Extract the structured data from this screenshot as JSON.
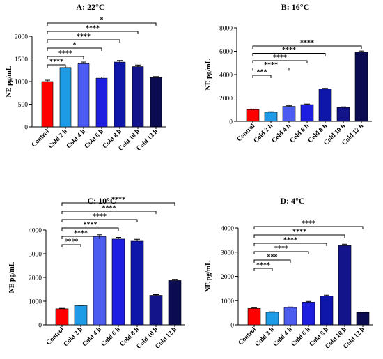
{
  "colors": [
    "#ff0000",
    "#1e9be6",
    "#4d5cf0",
    "#1e1ee0",
    "#0d16a8",
    "#14148a",
    "#0b0b52"
  ],
  "chart_data": [
    {
      "type": "bar",
      "title": "A: 22°C",
      "ylabel": "NE pg/mL",
      "categories": [
        "Control",
        "Cold 2 h",
        "Cold 4 h",
        "Cold 6 h",
        "Cold 8 h",
        "Cold 10 h",
        "Cold 12 h"
      ],
      "values": [
        1000,
        1310,
        1395,
        1075,
        1430,
        1330,
        1090
      ],
      "errors": [
        30,
        35,
        35,
        25,
        35,
        35,
        20
      ],
      "ylim": [
        0,
        2000
      ],
      "yticks": [
        0,
        500,
        1000,
        1500,
        2000
      ],
      "significance": [
        {
          "from": 0,
          "to": 1,
          "label": "****"
        },
        {
          "from": 0,
          "to": 2,
          "label": "****"
        },
        {
          "from": 0,
          "to": 3,
          "label": "*"
        },
        {
          "from": 0,
          "to": 4,
          "label": "****"
        },
        {
          "from": 0,
          "to": 5,
          "label": "****"
        },
        {
          "from": 0,
          "to": 6,
          "label": "*"
        }
      ]
    },
    {
      "type": "bar",
      "title": "B: 16°C",
      "ylabel": "NE pg/mL",
      "categories": [
        "Control",
        "Cold 2 h",
        "Cold 4 h",
        "Cold 6 h",
        "Cold 8 h",
        "Cold 10 h",
        "Cold 12 h"
      ],
      "values": [
        1000,
        780,
        1280,
        1430,
        2760,
        1180,
        5920
      ],
      "errors": [
        50,
        40,
        50,
        50,
        60,
        60,
        100
      ],
      "ylim": [
        0,
        8000
      ],
      "yticks": [
        0,
        2000,
        4000,
        6000,
        8000
      ],
      "significance": [
        {
          "from": 0,
          "to": 1,
          "label": "***"
        },
        {
          "from": 0,
          "to": 2,
          "label": "****"
        },
        {
          "from": 0,
          "to": 3,
          "label": "****"
        },
        {
          "from": 0,
          "to": 4,
          "label": "****"
        },
        {
          "from": 0,
          "to": 6,
          "label": "****"
        }
      ]
    },
    {
      "type": "bar",
      "title": "C: 10°C",
      "ylabel": "NE pg/mL",
      "categories": [
        "Control",
        "Cold 2 h",
        "Cold 4 h",
        "Cold 6 h",
        "Cold 8 h",
        "Cold 10 h",
        "Cold 12 h"
      ],
      "values": [
        680,
        810,
        3730,
        3620,
        3530,
        1250,
        1870
      ],
      "errors": [
        20,
        20,
        70,
        70,
        80,
        30,
        50
      ],
      "ylim": [
        0,
        4000
      ],
      "yticks": [
        0,
        1000,
        2000,
        3000,
        4000
      ],
      "significance": [
        {
          "from": 0,
          "to": 1,
          "label": "****"
        },
        {
          "from": 0,
          "to": 2,
          "label": "****"
        },
        {
          "from": 0,
          "to": 3,
          "label": "****"
        },
        {
          "from": 0,
          "to": 4,
          "label": "****"
        },
        {
          "from": 0,
          "to": 5,
          "label": "****"
        },
        {
          "from": 0,
          "to": 6,
          "label": "****"
        }
      ]
    },
    {
      "type": "bar",
      "title": "D: 4°C",
      "ylabel": "NE pg/mL",
      "categories": [
        "Control",
        "Cold 2 h",
        "Cold 4 h",
        "Cold 6 h",
        "Cold 8 h",
        "Cold 10 h",
        "Cold 12 h"
      ],
      "values": [
        680,
        520,
        720,
        940,
        1200,
        3270,
        510
      ],
      "errors": [
        20,
        20,
        20,
        30,
        30,
        60,
        20
      ],
      "ylim": [
        0,
        4000
      ],
      "yticks": [
        0,
        1000,
        2000,
        3000,
        4000
      ],
      "significance": [
        {
          "from": 0,
          "to": 1,
          "label": "****"
        },
        {
          "from": 0,
          "to": 2,
          "label": "***"
        },
        {
          "from": 0,
          "to": 3,
          "label": "****"
        },
        {
          "from": 0,
          "to": 4,
          "label": "****"
        },
        {
          "from": 0,
          "to": 5,
          "label": "****"
        },
        {
          "from": 0,
          "to": 6,
          "label": "****"
        }
      ]
    }
  ]
}
